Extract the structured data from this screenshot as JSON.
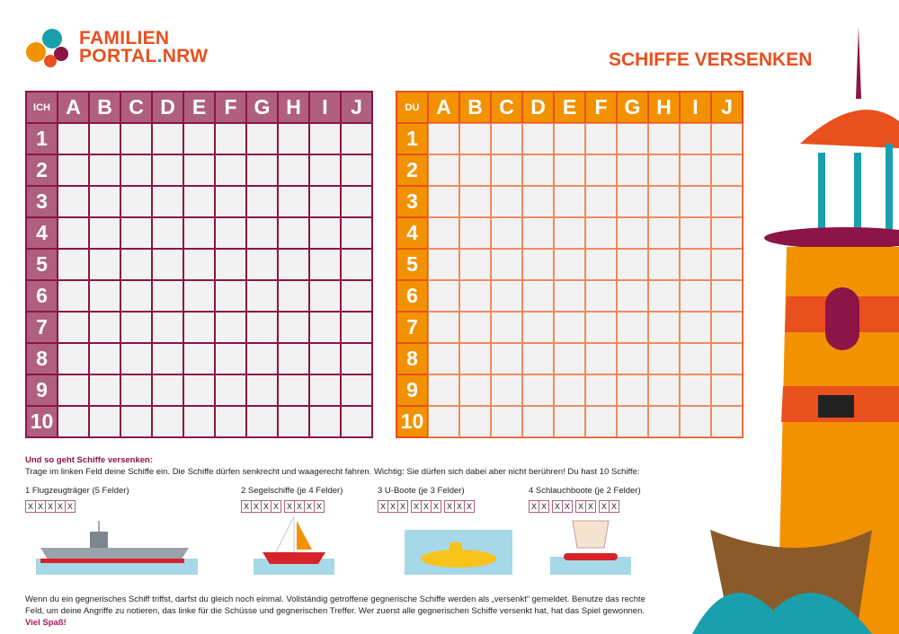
{
  "logo": {
    "line1": "FAMILIEN",
    "line2a": "PORTAL",
    "line2b": ".",
    "line2c": "NRW"
  },
  "title": "SCHIFFE VERSENKEN",
  "grid_left": {
    "corner": "ICH",
    "columns": [
      "A",
      "B",
      "C",
      "D",
      "E",
      "F",
      "G",
      "H",
      "I",
      "J"
    ],
    "rows": [
      "1",
      "2",
      "3",
      "4",
      "5",
      "6",
      "7",
      "8",
      "9",
      "10"
    ],
    "color": "#b0607f"
  },
  "grid_right": {
    "corner": "DU",
    "columns": [
      "A",
      "B",
      "C",
      "D",
      "E",
      "F",
      "G",
      "H",
      "I",
      "J"
    ],
    "rows": [
      "1",
      "2",
      "3",
      "4",
      "5",
      "6",
      "7",
      "8",
      "9",
      "10"
    ],
    "color": "#f39200"
  },
  "instructions": {
    "heading": "Und so geht Schiffe versenken:",
    "text": "Trage im linken Feld deine Schiffe ein. Die Schiffe dürfen senkrecht und waagerecht fahren. Wichtig: Sie dürfen sich dabei aber nicht berühren! Du hast 10 Schiffe:"
  },
  "ships": [
    {
      "label": "1 Flugzeugträger (5 Felder)",
      "groups": [
        5
      ]
    },
    {
      "label": "2 Segelschiffe (je 4 Felder)",
      "groups": [
        4,
        4
      ]
    },
    {
      "label": "3 U-Boote (je 3 Felder)",
      "groups": [
        3,
        3,
        3
      ]
    },
    {
      "label": "4 Schlauchboote (je 2 Felder)",
      "groups": [
        2,
        2,
        2,
        2
      ]
    }
  ],
  "mark": "X",
  "footer": {
    "text": "Wenn du ein gegnerisches Schiff triffst, darfst du gleich noch einmal. Vollständig getroffene gegnerische Schiffe werden als „versenkt“ gemeldet. Benutze das rechte Feld, um deine Angriffe zu notieren, das linke für die Schüsse und gegnerischen Treffer. Wer zuerst alle gegnerischen Schiffe versenkt hat, hat das Spiel gewonnen.",
    "highlight": "Viel Spaß!"
  }
}
